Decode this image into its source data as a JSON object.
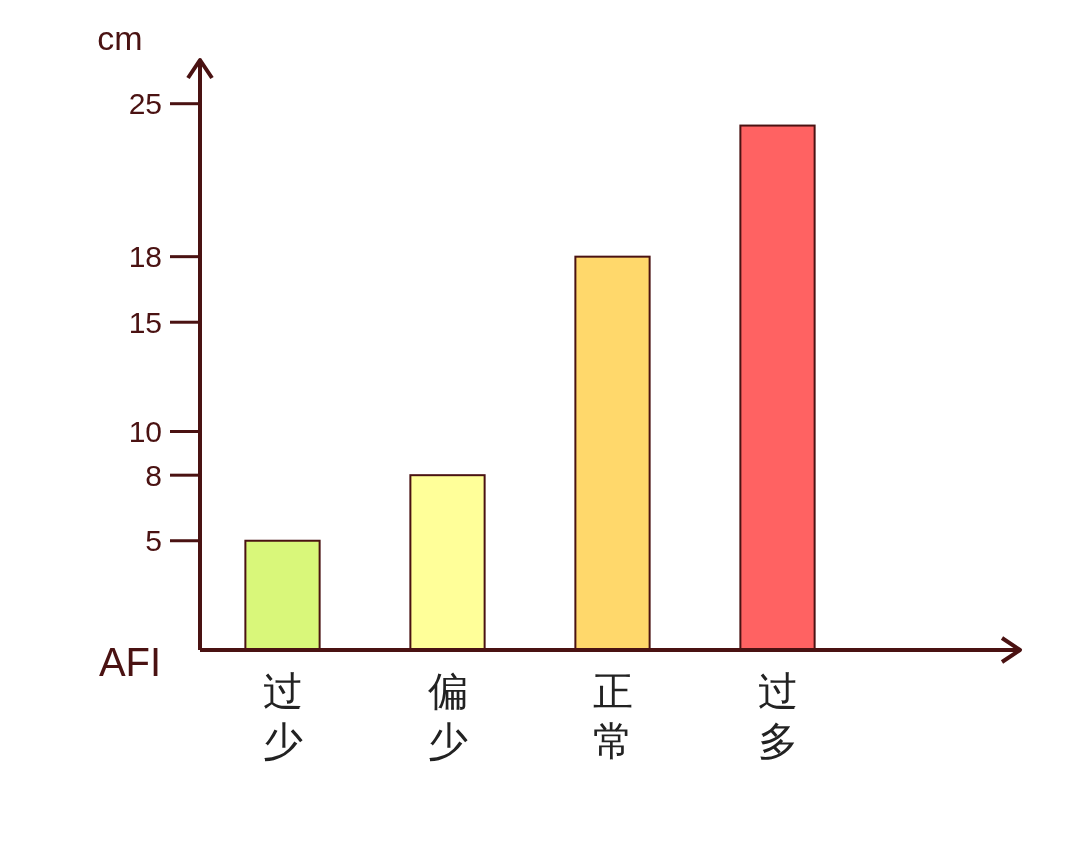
{
  "chart_data": {
    "type": "bar",
    "xlabel": "AFI",
    "ylabel": "cm",
    "categories": [
      "过少",
      "偏少",
      "正常",
      "过多"
    ],
    "values": [
      5,
      8,
      18,
      24
    ],
    "colors": [
      "#d9f77a",
      "#ffff99",
      "#ffd86b",
      "#ff6262"
    ],
    "ylim": [
      0,
      27
    ],
    "yticks": [
      5,
      8,
      10,
      15,
      18,
      25
    ]
  }
}
